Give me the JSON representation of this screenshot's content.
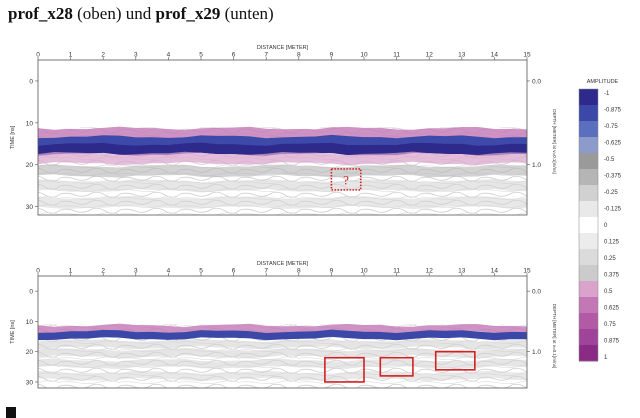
{
  "caption": {
    "name1": "prof_x28",
    "mid": " (oben) und ",
    "name2": "prof_x29",
    "end": " (unten)"
  },
  "chart_data": [
    {
      "type": "heatmap",
      "name": "prof_x28",
      "title": "DISTANCE [METER]",
      "xlabel": "DISTANCE [METER]",
      "ylabel": "TIME [ns]",
      "ylabel_right": "DEPTH [METER] at v=0.1[m/ns]",
      "x_ticks": [
        0,
        1,
        2,
        3,
        4,
        5,
        6,
        7,
        8,
        9,
        10,
        11,
        12,
        13,
        14,
        15
      ],
      "y_ticks": [
        0,
        10,
        20,
        30
      ],
      "y_ticks_right": [
        "0.0",
        "1.0"
      ],
      "xlim": [
        0,
        15
      ],
      "ylim": [
        -5,
        32
      ],
      "bands": [
        {
          "time": 12.5,
          "amplitude": 0.6
        },
        {
          "time": 14.5,
          "amplitude": -0.85
        },
        {
          "time": 16.3,
          "amplitude": -0.95
        },
        {
          "time": 18.5,
          "amplitude": 0.5
        },
        {
          "time": 21.5,
          "amplitude": -0.35
        },
        {
          "time": 25.0,
          "amplitude": -0.25
        },
        {
          "time": 29.0,
          "amplitude": -0.2
        }
      ],
      "annotations": [
        {
          "label": "?",
          "x_range": [
            9.0,
            9.9
          ],
          "time_range": [
            21,
            26
          ],
          "style": "dotted"
        }
      ]
    },
    {
      "type": "heatmap",
      "name": "prof_x29",
      "title": "DISTANCE [METER]",
      "xlabel": "DISTANCE [METER]",
      "ylabel": "TIME [ns]",
      "ylabel_right": "DEPTH [METER] at v=0.1[m/ns]",
      "x_ticks": [
        0,
        1,
        2,
        3,
        4,
        5,
        6,
        7,
        8,
        9,
        10,
        11,
        12,
        13,
        14,
        15
      ],
      "y_ticks": [
        0,
        10,
        20,
        30
      ],
      "y_ticks_right": [
        "0.0",
        "1.0"
      ],
      "xlim": [
        0,
        15
      ],
      "ylim": [
        -5,
        32
      ],
      "bands": [
        {
          "time": 12.5,
          "amplitude": 0.6
        },
        {
          "time": 14.5,
          "amplitude": -0.9
        },
        {
          "time": 17.5,
          "amplitude": -0.3
        },
        {
          "time": 20.5,
          "amplitude": -0.3
        },
        {
          "time": 24.0,
          "amplitude": -0.25
        },
        {
          "time": 28.0,
          "amplitude": -0.2
        }
      ],
      "annotations": [
        {
          "label": "",
          "x_range": [
            8.8,
            10.0
          ],
          "time_range": [
            22,
            30
          ],
          "style": "solid"
        },
        {
          "label": "",
          "x_range": [
            10.5,
            11.5
          ],
          "time_range": [
            22,
            28
          ],
          "style": "solid"
        },
        {
          "label": "",
          "x_range": [
            12.2,
            13.4
          ],
          "time_range": [
            20,
            26
          ],
          "style": "solid"
        }
      ]
    }
  ],
  "colorbar": {
    "title": "AMPLITUDE",
    "ticks": [
      "-1",
      "-0.875",
      "-0.75",
      "-0.625",
      "-0.5",
      "-0.375",
      "-0.25",
      "-0.125",
      "0",
      "0.125",
      "0.25",
      "0.375",
      "0.5",
      "0.625",
      "0.75",
      "0.875",
      "1"
    ],
    "colors": [
      "#2e2a8c",
      "#3b48a8",
      "#5a6fbe",
      "#8d9bcb",
      "#9a9a9a",
      "#b5b5b5",
      "#d1d1d1",
      "#e9e9e9",
      "#ffffff",
      "#ececec",
      "#dbdbdb",
      "#cbcbcb",
      "#d9a3cc",
      "#c377b5",
      "#b25aa6",
      "#a04499",
      "#8a2b86"
    ]
  }
}
